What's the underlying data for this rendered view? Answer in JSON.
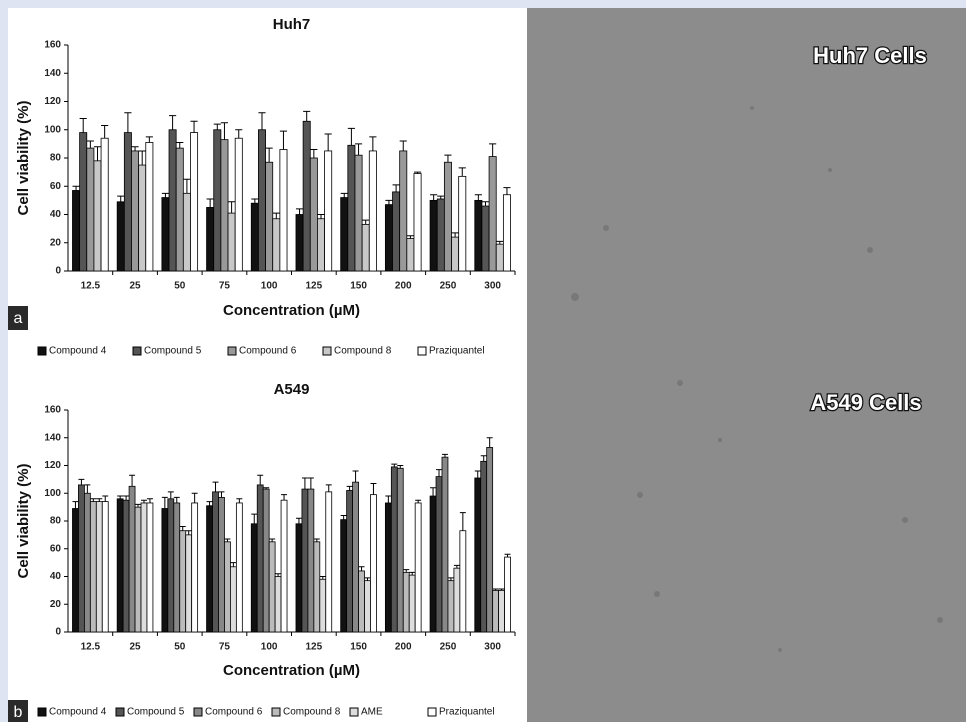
{
  "chart_data": [
    {
      "type": "bar",
      "panel_label": "a",
      "title": "Huh7",
      "x_label": "Concentration (µM)",
      "y_label": "Cell viability  (%)",
      "categories": [
        "12.5",
        "25",
        "50",
        "75",
        "100",
        "125",
        "150",
        "200",
        "250",
        "300"
      ],
      "ylim": [
        0,
        160
      ],
      "yticks": [
        0,
        20,
        40,
        60,
        80,
        100,
        120,
        140,
        160
      ],
      "series": [
        {
          "name": "Compound 4",
          "color": "#111111",
          "values": [
            57,
            49,
            52,
            45,
            48,
            40,
            52,
            47,
            50,
            50
          ],
          "errors": [
            3,
            4,
            3,
            6,
            3,
            4,
            3,
            3,
            4,
            4
          ]
        },
        {
          "name": "Compound 5",
          "color": "#555555",
          "values": [
            98,
            98,
            100,
            100,
            100,
            106,
            89,
            56,
            51,
            46
          ],
          "errors": [
            10,
            14,
            10,
            4,
            12,
            7,
            12,
            5,
            2,
            3
          ]
        },
        {
          "name": "Compound 6",
          "color": "#999999",
          "values": [
            87,
            85,
            87,
            93,
            77,
            80,
            82,
            85,
            77,
            81
          ],
          "errors": [
            5,
            3,
            4,
            12,
            10,
            6,
            8,
            7,
            5,
            9
          ]
        },
        {
          "name": "Compound 8",
          "color": "#c8c8c8",
          "values": [
            78,
            75,
            55,
            41,
            37,
            37,
            33,
            23,
            24,
            19
          ],
          "errors": [
            10,
            10,
            10,
            8,
            4,
            3,
            3,
            2,
            3,
            2
          ]
        },
        {
          "name": "Praziquantel",
          "color": "#ffffff",
          "values": [
            94,
            91,
            98,
            94,
            86,
            85,
            85,
            69,
            67,
            54
          ],
          "errors": [
            9,
            4,
            8,
            6,
            13,
            12,
            10,
            1,
            6,
            5
          ]
        }
      ]
    },
    {
      "type": "bar",
      "panel_label": "b",
      "title": "A549",
      "x_label": "Concentration (µM)",
      "y_label": "Cell viability (%)",
      "categories": [
        "12.5",
        "25",
        "50",
        "75",
        "100",
        "125",
        "150",
        "200",
        "250",
        "300"
      ],
      "ylim": [
        0,
        160
      ],
      "yticks": [
        0,
        20,
        40,
        60,
        80,
        100,
        120,
        140,
        160
      ],
      "series": [
        {
          "name": "Compound 4",
          "color": "#111111",
          "values": [
            89,
            96,
            89,
            91,
            78,
            78,
            81,
            93,
            98,
            111
          ],
          "errors": [
            5,
            2,
            8,
            3,
            7,
            4,
            3,
            5,
            6,
            5
          ]
        },
        {
          "name": "Compound 5",
          "color": "#555555",
          "values": [
            106,
            95,
            96,
            101,
            106,
            103,
            102,
            119,
            112,
            123
          ],
          "errors": [
            4,
            3,
            5,
            7,
            7,
            8,
            3,
            2,
            5,
            4
          ]
        },
        {
          "name": "Compound 6",
          "color": "#888888",
          "values": [
            100,
            105,
            93,
            97,
            103,
            103,
            108,
            118,
            126,
            133
          ],
          "errors": [
            6,
            8,
            4,
            4,
            1,
            8,
            8,
            2,
            2,
            7
          ]
        },
        {
          "name": "Compound 8",
          "color": "#bbbbbb",
          "values": [
            94,
            90,
            73,
            65,
            65,
            65,
            44,
            43,
            37,
            30
          ],
          "errors": [
            2,
            2,
            3,
            2,
            2,
            2,
            3,
            2,
            2,
            1
          ]
        },
        {
          "name": "AME",
          "color": "#dddddd",
          "values": [
            94,
            93,
            70,
            47,
            40,
            38,
            37,
            41,
            46,
            30
          ],
          "errors": [
            2,
            2,
            3,
            3,
            2,
            2,
            2,
            2,
            2,
            1
          ]
        },
        {
          "name": "Praziquantel",
          "color": "#ffffff",
          "values": [
            94,
            93,
            93,
            93,
            95,
            101,
            99,
            93,
            73,
            54
          ],
          "errors": [
            4,
            3,
            7,
            3,
            4,
            5,
            8,
            2,
            13,
            2
          ]
        }
      ]
    }
  ],
  "image": {
    "labels": [
      "Huh7 Cells",
      "A549 Cells"
    ]
  }
}
